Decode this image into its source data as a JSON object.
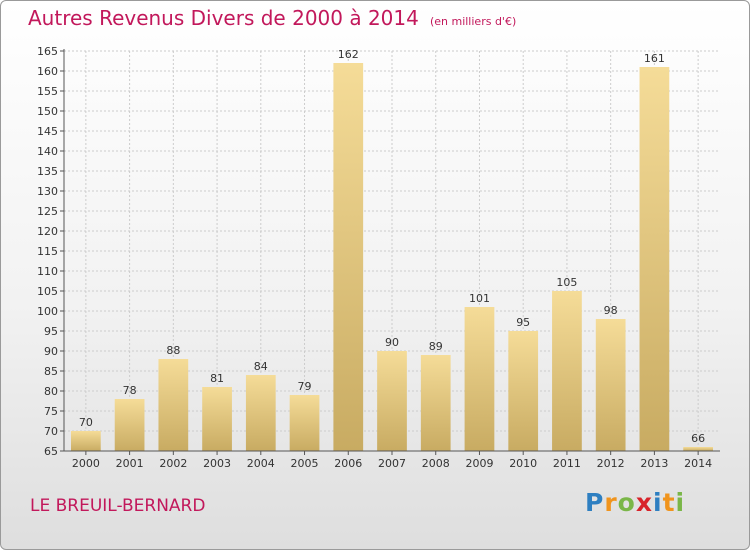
{
  "header": {
    "title": "Autres Revenus Divers de 2000 à 2014",
    "unit": "(en milliers d'€)"
  },
  "commune": "LE BREUIL-BERNARD",
  "logo": {
    "text": "Proxiti",
    "letters": [
      {
        "char": "P",
        "color": "#2e7fc1"
      },
      {
        "char": "r",
        "color": "#f0941d"
      },
      {
        "char": "o",
        "color": "#7ab648"
      },
      {
        "char": "x",
        "color": "#d8232a"
      },
      {
        "char": "i",
        "color": "#2e7fc1"
      },
      {
        "char": "t",
        "color": "#f0941d"
      },
      {
        "char": "i",
        "color": "#7ab648"
      }
    ]
  },
  "chart_data": {
    "type": "bar",
    "categories": [
      "2000",
      "2001",
      "2002",
      "2003",
      "2004",
      "2005",
      "2006",
      "2007",
      "2008",
      "2009",
      "2010",
      "2011",
      "2012",
      "2013",
      "2014"
    ],
    "values": [
      70,
      78,
      88,
      81,
      84,
      79,
      162,
      90,
      89,
      101,
      95,
      105,
      98,
      161,
      66
    ],
    "ylim": [
      65,
      165
    ],
    "ytick_step": 5,
    "grid": true,
    "colors": {
      "bar_light": "#f5dc98",
      "bar_dark": "#c8ab62",
      "grid": "#cccccc",
      "axis": "#555555"
    }
  }
}
